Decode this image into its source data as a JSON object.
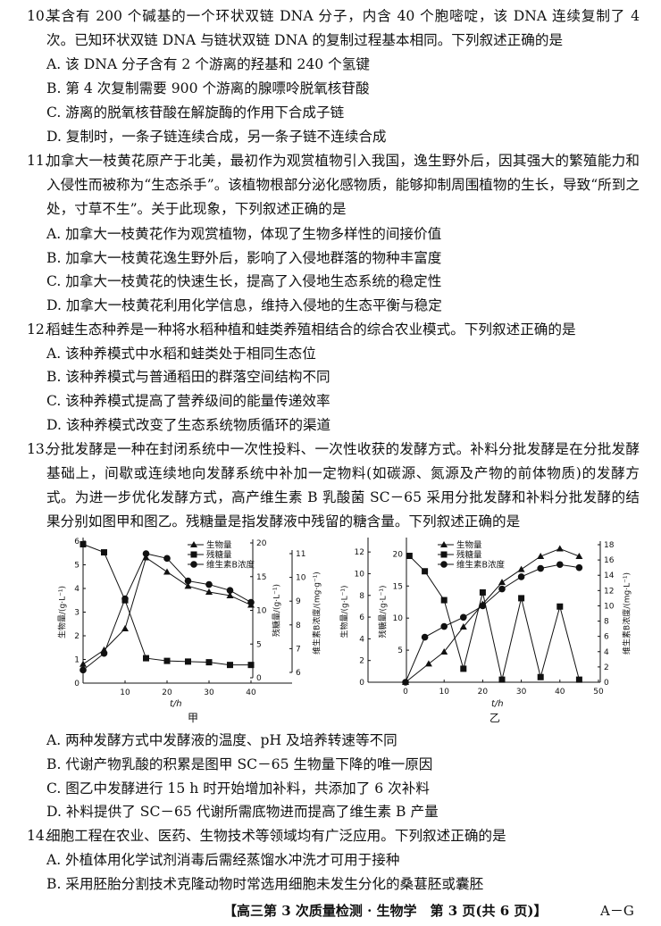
{
  "questions": [
    {
      "num": "10.",
      "stem": "某含有 200 个碱基的一个环状双链 DNA 分子，内含 40 个胞嘧啶，该 DNA 连续复制了 4 次。已知环状双链 DNA 与链状双链 DNA 的复制过程基本相同。下列叙述正确的是",
      "options": [
        "A. 该 DNA 分子含有 2 个游离的羟基和 240 个氢键",
        "B. 第 4 次复制需要 900 个游离的腺嘌呤脱氧核苷酸",
        "C. 游离的脱氧核苷酸在解旋酶的作用下合成子链",
        "D. 复制时，一条子链连续合成，另一条子链不连续合成"
      ]
    },
    {
      "num": "11.",
      "stem": "加拿大一枝黄花原产于北美，最初作为观赏植物引入我国，逸生野外后，因其强大的繁殖能力和入侵性而被称为“生态杀手”。该植物根部分泌化感物质，能够抑制周围植物的生长，导致“所到之处，寸草不生”。关于此现象，下列叙述正确的是",
      "options": [
        "A. 加拿大一枝黄花作为观赏植物，体现了生物多样性的间接价值",
        "B. 加拿大一枝黄花逸生野外后，影响了入侵地群落的物种丰富度",
        "C. 加拿大一枝黄花的快速生长，提高了入侵地生态系统的稳定性",
        "D. 加拿大一枝黄花利用化学信息，维持入侵地的生态平衡与稳定"
      ]
    },
    {
      "num": "12.",
      "stem": "稻蛙生态种养是一种将水稻种植和蛙类养殖相结合的综合农业模式。下列叙述正确的是",
      "options": [
        "A. 该种养模式中水稻和蛙类处于相同生态位",
        "B. 该种养模式与普通稻田的群落空间结构不同",
        "C. 该种养模式提高了营养级间的能量传递效率",
        "D. 该种养模式改变了生态系统物质循环的渠道"
      ]
    },
    {
      "num": "13.",
      "stem": "分批发酵是一种在封闭系统中一次性投料、一次性收获的发酵方式。补料分批发酵是在分批发酵基础上，间歇或连续地向发酵系统中补加一定物料(如碳源、氮源及产物的前体物质)的发酵方式。为进一步优化发酵方式，高产维生素 B 乳酸菌 SC－65 采用分批发酵和补料分批发酵的结果分别如图甲和图乙。残糖量是指发酵液中残留的糖含量。下列叙述正确的是",
      "options": [
        "A. 两种发酵方式中发酵液的温度、pH 及培养转速等不同",
        "B. 代谢产物乳酸的积累是图甲 SC－65 生物量下降的唯一原因",
        "C. 图乙中发酵进行 15 h 时开始增加补料，共添加了 6 次补料",
        "D. 补料提供了 SC－65 代谢所需底物进而提高了维生素 B 产量"
      ]
    },
    {
      "num": "14.",
      "stem": "细胞工程在农业、医药、生物技术等领域均有广泛应用。下列叙述正确的是",
      "options": [
        "A. 外植体用化学试剂消毒后需经蒸馏水冲洗才可用于接种",
        "B. 采用胚胎分割技术克隆动物时常选用细胞未发生分化的桑葚胚或囊胚"
      ]
    }
  ],
  "chart_data": [
    {
      "type": "line",
      "caption": "甲",
      "xlabel": "t/h",
      "x_ticks": [
        10,
        20,
        30,
        40
      ],
      "legend": [
        "生物量",
        "残糖量",
        "维生素B浓度"
      ],
      "legend_placement": "top-right",
      "axes": {
        "biomass": {
          "label": "生物量/(g·L⁻¹)",
          "range": [
            0,
            6
          ],
          "ticks": [
            0,
            1,
            2,
            3,
            4,
            5,
            6
          ]
        },
        "sugar": {
          "label": "残糖量/(g·L⁻¹)",
          "range": [
            0,
            20
          ],
          "ticks": [
            0,
            5,
            10,
            15,
            20
          ]
        },
        "vitb": {
          "label": "维生素B浓度/(mg·g⁻¹)",
          "range": [
            6,
            11
          ],
          "ticks": [
            6,
            7,
            8,
            9,
            10,
            11
          ]
        }
      },
      "series": [
        {
          "name": "生物量",
          "axis": "biomass",
          "marker": "triangle",
          "x": [
            0,
            5,
            10,
            15,
            20,
            25,
            30,
            35,
            40
          ],
          "y": [
            0.8,
            1.4,
            2.3,
            5.3,
            4.7,
            4.1,
            3.85,
            3.7,
            3.3
          ]
        },
        {
          "name": "残糖量",
          "axis": "sugar",
          "marker": "square",
          "x": [
            0,
            5,
            10,
            15,
            20,
            25,
            30,
            35,
            40
          ],
          "y": [
            19.8,
            18.6,
            11.5,
            2.9,
            2.5,
            2.4,
            2.3,
            1.9,
            1.9
          ]
        },
        {
          "name": "维生素B浓度",
          "axis": "vitb",
          "marker": "circle",
          "x": [
            0,
            5,
            10,
            15,
            20,
            25,
            30,
            35,
            40
          ],
          "y": [
            6.1,
            6.8,
            9.1,
            11.0,
            10.8,
            9.85,
            9.7,
            9.45,
            8.95
          ]
        }
      ]
    },
    {
      "type": "line",
      "caption": "乙",
      "xlabel": "t/h",
      "x_ticks": [
        0,
        10,
        20,
        30,
        40,
        50
      ],
      "legend": [
        "生物量",
        "残糖量",
        "维生素B浓度"
      ],
      "legend_placement": "top",
      "axes": {
        "biomass": {
          "label": "生物量/(g·L⁻¹)",
          "range": [
            0,
            13
          ],
          "ticks": [
            0,
            2,
            4,
            6,
            8,
            10,
            12
          ]
        },
        "sugar": {
          "label": "残糖量/(g·L⁻¹)",
          "range": [
            0,
            22
          ],
          "ticks": [
            5,
            10,
            15,
            20
          ]
        },
        "vitb": {
          "label": "维生素B浓度/(mg·L⁻¹)",
          "range": [
            0,
            18
          ],
          "ticks": [
            0,
            2,
            4,
            6,
            8,
            10,
            12,
            14,
            16,
            18
          ]
        }
      },
      "series": [
        {
          "name": "生物量",
          "axis": "biomass",
          "marker": "triangle",
          "x": [
            0,
            6,
            10,
            15,
            20,
            25,
            30,
            35,
            40,
            45
          ],
          "y": [
            0,
            1.7,
            2.8,
            5.1,
            7.2,
            9.2,
            10.4,
            11.6,
            12.3,
            11.6
          ]
        },
        {
          "name": "残糖量",
          "axis": "sugar",
          "marker": "square",
          "x": [
            1,
            5,
            10,
            15,
            20,
            25,
            30,
            35,
            40,
            45
          ],
          "y": [
            19.7,
            17.3,
            12.8,
            2.1,
            14,
            0.4,
            13.1,
            0.8,
            11.8,
            0.4
          ]
        },
        {
          "name": "维生素B浓度",
          "axis": "vitb",
          "marker": "circle",
          "x": [
            0,
            5,
            10,
            15,
            20,
            25,
            30,
            35,
            40,
            45
          ],
          "y": [
            0,
            5.9,
            7.3,
            8.5,
            10,
            12.2,
            13.8,
            14.9,
            15.4,
            15.0
          ]
        }
      ]
    }
  ],
  "footer": {
    "center": "【高三第 3 次质量检测 · 生物学　第 3 页(共 6 页)】",
    "right": "A－G"
  }
}
